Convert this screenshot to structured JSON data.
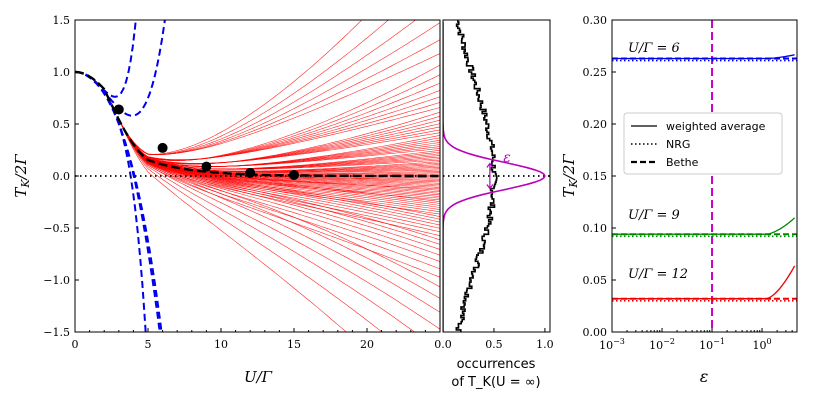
{
  "chart_data": [
    {
      "type": "line",
      "panel": "left",
      "xlabel": "U/Γ",
      "ylabel": "T_K/2Γ",
      "xlim": [
        0,
        25
      ],
      "ylim": [
        -1.5,
        1.5
      ],
      "xticks": [
        0,
        5,
        10,
        15,
        20
      ],
      "yticks": [
        -1.5,
        -1.0,
        -0.5,
        0.0,
        0.5,
        1.0,
        1.5
      ],
      "series": [
        {
          "name": "weighted average curves (red, many)",
          "color": "#ff0000"
        },
        {
          "name": "Bethe (black dashed)",
          "color": "#000000"
        },
        {
          "name": "series expansions (blue dashed)",
          "color": "#0000ee"
        },
        {
          "name": "zero line (dotted)",
          "color": "#000000"
        }
      ],
      "markers": {
        "x": [
          3,
          6,
          9,
          12,
          15
        ],
        "y": [
          0.64,
          0.27,
          0.09,
          0.03,
          0.01
        ]
      }
    },
    {
      "type": "histogram",
      "panel": "middle",
      "xlabel_line1": "occurrences",
      "xlabel_line2": "of T_K(U = ∞)",
      "xlim": [
        0,
        1.05
      ],
      "xticks": [
        0.0,
        0.5,
        1.0
      ],
      "annotation": "ε",
      "curve_color": "#bb00bb"
    },
    {
      "type": "line",
      "panel": "right",
      "xlabel": "ε",
      "ylabel": "T_K/2Γ",
      "xscale": "log",
      "xlim": [
        0.001,
        5
      ],
      "ylim": [
        0.0,
        0.3
      ],
      "xticks": [
        "10^-3",
        "10^-2",
        "10^-1",
        "10^0"
      ],
      "yticks": [
        0.0,
        0.05,
        0.1,
        0.15,
        0.2,
        0.25,
        0.3
      ],
      "vline_x": 0.1,
      "groups": [
        {
          "label": "U/Γ = 6",
          "color": "#0000ee",
          "nrg": 0.261,
          "bethe": 0.263,
          "avg_end": 0.267
        },
        {
          "label": "U/Γ = 9",
          "color": "#008800",
          "nrg": 0.092,
          "bethe": 0.094,
          "avg_end": 0.112
        },
        {
          "label": "U/Γ = 12",
          "color": "#ee0000",
          "nrg": 0.03,
          "bethe": 0.032,
          "avg_end": 0.068
        }
      ],
      "legend": [
        "weighted average",
        "NRG",
        "Bethe"
      ]
    }
  ]
}
